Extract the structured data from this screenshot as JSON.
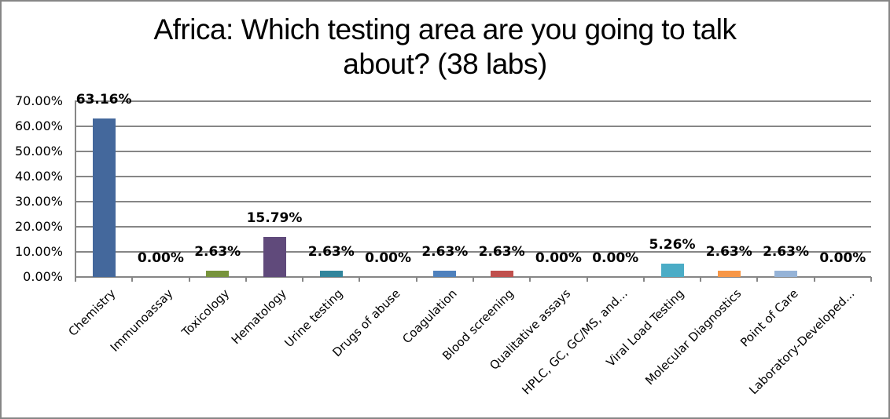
{
  "chart_data": {
    "type": "bar",
    "title": "Africa: Which testing area are you going to talk about? (38 labs)",
    "title_lines": [
      "Africa: Which testing area are you going to talk",
      "about? (38 labs)"
    ],
    "xlabel": "",
    "ylabel": "",
    "ylim": [
      0,
      70
    ],
    "yticks": [
      "0.00%",
      "10.00%",
      "20.00%",
      "30.00%",
      "40.00%",
      "50.00%",
      "60.00%",
      "70.00%"
    ],
    "grid": true,
    "legend": null,
    "categories": [
      "Chemistry",
      "Immunoassay",
      "Toxicology",
      "Hematology",
      "Urine testing",
      "Drugs of abuse",
      "Coagulation",
      "Blood screening",
      "Qualitative assays",
      "HPLC, GC, GC/MS, and...",
      "Viral Load Testing",
      "Molecular Diagnostics",
      "Point of Care",
      "Laboratory-Developed..."
    ],
    "values": [
      63.16,
      0.0,
      2.63,
      15.79,
      2.63,
      0.0,
      2.63,
      2.63,
      0.0,
      0.0,
      5.26,
      2.63,
      2.63,
      0.0
    ],
    "value_labels": [
      "63.16%",
      "0.00%",
      "2.63%",
      "15.79%",
      "2.63%",
      "0.00%",
      "2.63%",
      "2.63%",
      "0.00%",
      "0.00%",
      "5.26%",
      "2.63%",
      "2.63%",
      "0.00%"
    ],
    "colors": [
      "#44689C",
      "#4F81BD",
      "#77933C",
      "#604A7B",
      "#31859C",
      "#4F81BD",
      "#4F81BD",
      "#C0504D",
      "#4F81BD",
      "#4F81BD",
      "#4BACC6",
      "#F79646",
      "#95B3D7",
      "#4F81BD"
    ]
  }
}
